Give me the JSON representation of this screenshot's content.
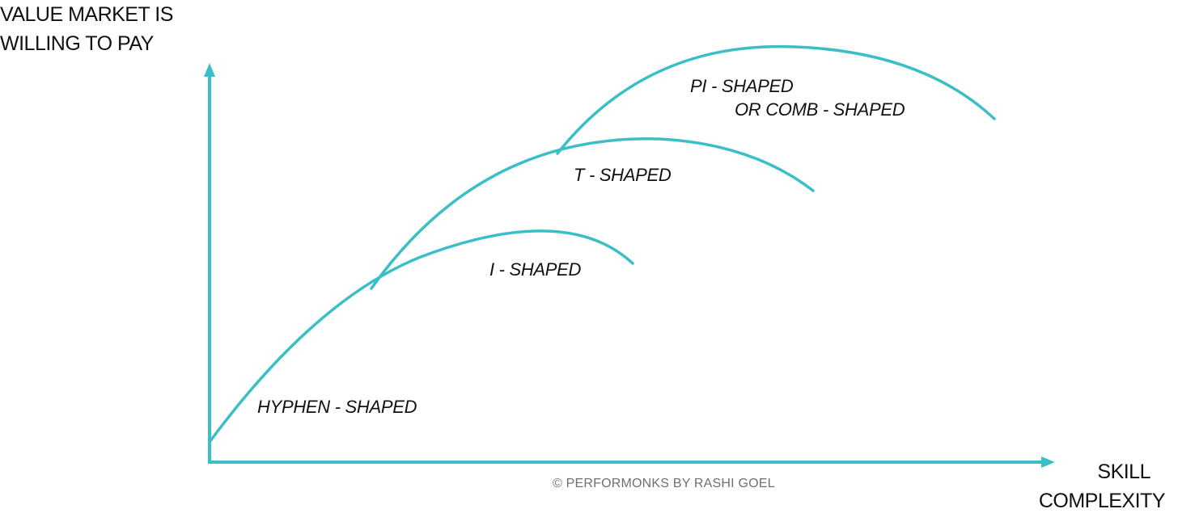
{
  "axes": {
    "y_title_line1": "VALUE MARKET IS",
    "y_title_line2": "WILLING TO PAY",
    "x_title_line1": "SKILL",
    "x_title_line2": "COMPLEXITY"
  },
  "curves": {
    "hyphen": "HYPHEN - SHAPED",
    "i": "I - SHAPED",
    "t": "T - SHAPED",
    "pi_line1": "PI - SHAPED",
    "pi_line2": "OR COMB - SHAPED"
  },
  "copyright": "© PERFORMONKS BY RASHI GOEL",
  "colors": {
    "curve": "#3bbfc7",
    "axis": "#3bbfc7",
    "text": "#111111",
    "copyright": "#6f6f6f"
  }
}
